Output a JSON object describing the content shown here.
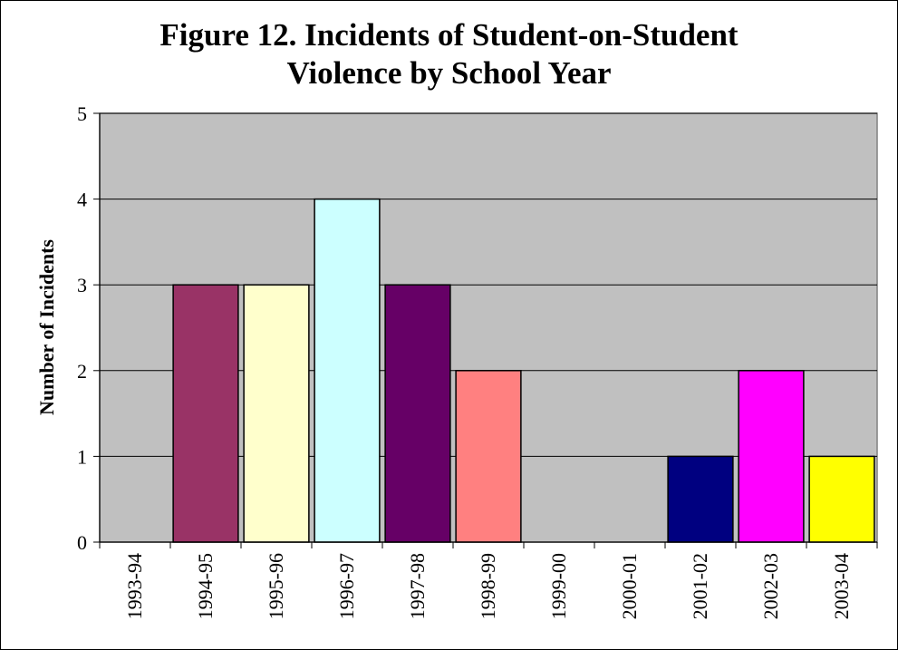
{
  "chart_data": {
    "type": "bar",
    "title_lines": [
      "Figure 12. Incidents of Student-on-Student",
      "Violence by School Year"
    ],
    "xlabel": "",
    "ylabel": "Number of Incidents",
    "categories": [
      "1993-94",
      "1994-95",
      "1995-96",
      "1996-97",
      "1997-98",
      "1998-99",
      "1999-00",
      "2000-01",
      "2001-02",
      "2002-03",
      "2003-04"
    ],
    "values": [
      0,
      3,
      3,
      4,
      3,
      2,
      0,
      0,
      1,
      2,
      1
    ],
    "bar_colors": [
      "#993366",
      "#993366",
      "#FFFFCC",
      "#CCFFFF",
      "#660066",
      "#FF8080",
      "#0066CC",
      "#CCCCFF",
      "#000080",
      "#FF00FF",
      "#FFFF00"
    ],
    "ylim": [
      0,
      5
    ],
    "yticks": [
      0,
      1,
      2,
      3,
      4,
      5
    ],
    "grid": true,
    "legend": "none",
    "plot_background": "#C0C0C0"
  }
}
